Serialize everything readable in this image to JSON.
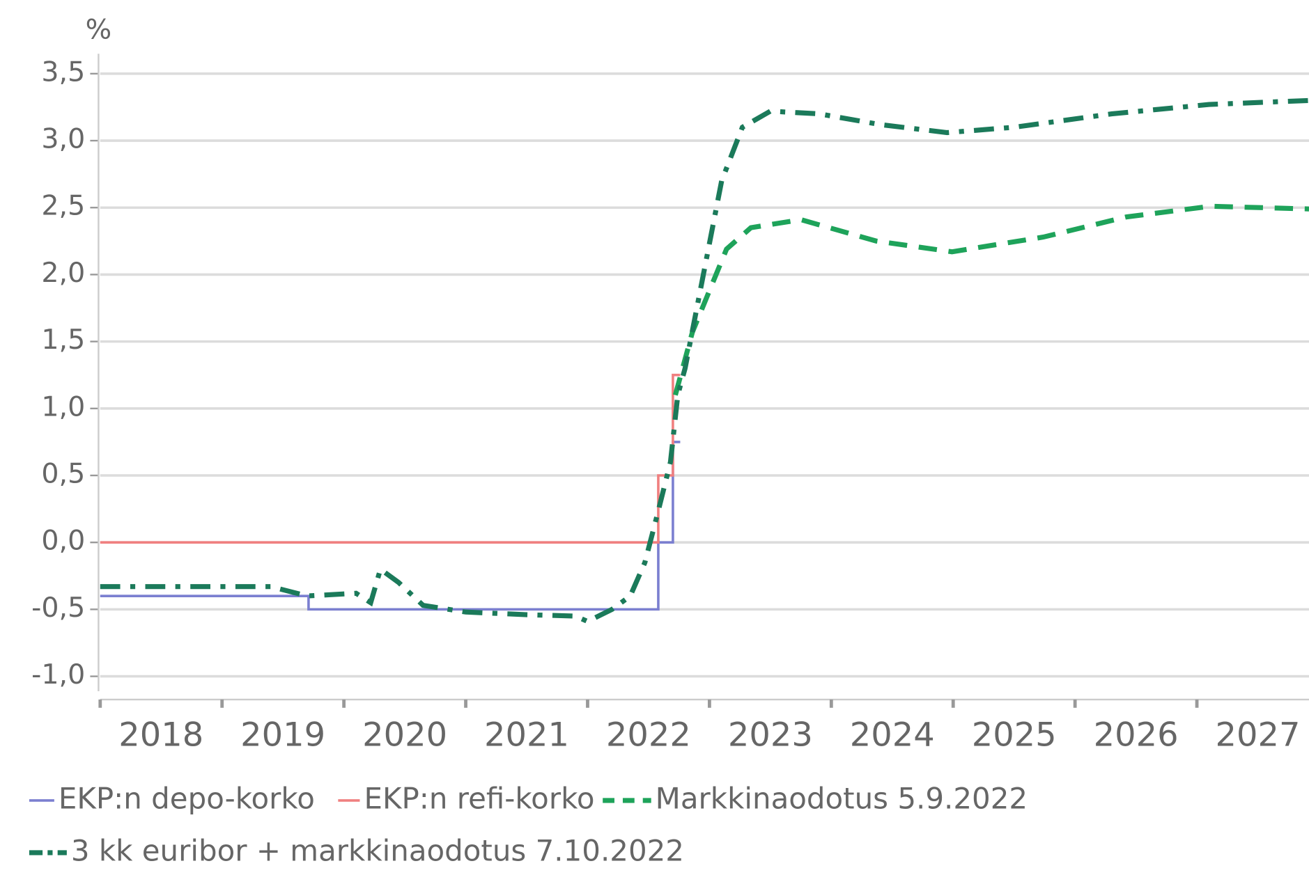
{
  "chart_data": {
    "type": "line",
    "y_label": "%",
    "xlim": [
      2018,
      2027.92
    ],
    "ylim": [
      -1.0,
      3.5
    ],
    "xticks": [
      {
        "value": 2018,
        "label": "2018"
      },
      {
        "value": 2019,
        "label": "2019"
      },
      {
        "value": 2020,
        "label": "2020"
      },
      {
        "value": 2021,
        "label": "2021"
      },
      {
        "value": 2022,
        "label": "2022"
      },
      {
        "value": 2023,
        "label": "2023"
      },
      {
        "value": 2024,
        "label": "2024"
      },
      {
        "value": 2025,
        "label": "2025"
      },
      {
        "value": 2026,
        "label": "2026"
      },
      {
        "value": 2027,
        "label": "2027"
      }
    ],
    "yticks": [
      {
        "value": 3.5,
        "label": "3,5"
      },
      {
        "value": 3.0,
        "label": "3,0"
      },
      {
        "value": 2.5,
        "label": "2,5"
      },
      {
        "value": 2.0,
        "label": "2,0"
      },
      {
        "value": 1.5,
        "label": "1,5"
      },
      {
        "value": 1.0,
        "label": "1,0"
      },
      {
        "value": 0.5,
        "label": "0,5"
      },
      {
        "value": 0.0,
        "label": "0,0"
      },
      {
        "value": -0.5,
        "label": "-0,5"
      },
      {
        "value": -1.0,
        "label": "-1,0"
      }
    ],
    "grid": true,
    "series": [
      {
        "name": "EKP:n depo-korko",
        "color": "#7b7fd0",
        "dash": "solid",
        "x": [
          2018,
          2019.71,
          2019.71,
          2022.58,
          2022.58,
          2022.7,
          2022.7,
          2022.76
        ],
        "values": [
          -0.4,
          -0.4,
          -0.5,
          -0.5,
          0.0,
          0.0,
          0.75,
          0.75
        ]
      },
      {
        "name": "EKP:n refi-korko",
        "color": "#f08080",
        "dash": "solid",
        "x": [
          2018,
          2022.58,
          2022.58,
          2022.7,
          2022.7,
          2022.76
        ],
        "values": [
          0.0,
          0.0,
          0.5,
          0.5,
          1.25,
          1.25
        ]
      },
      {
        "name": "Markkinaodotus 5.9.2022",
        "color": "#1ea35a",
        "dash": "dashed",
        "x": [
          2022.72,
          2022.86,
          2023.14,
          2023.34,
          2023.75,
          2024.37,
          2024.99,
          2025.74,
          2026.42,
          2027.11,
          2027.92
        ],
        "values": [
          1.1,
          1.57,
          2.19,
          2.35,
          2.41,
          2.25,
          2.17,
          2.28,
          2.43,
          2.51,
          2.49
        ]
      },
      {
        "name": "3 kk euribor + markkinaodotus 7.10.2022",
        "color": "#1b7a5a",
        "dash": "dashdot",
        "x": [
          2018,
          2019.4,
          2019.7,
          2020.1,
          2020.22,
          2020.3,
          2020.45,
          2020.65,
          2021.0,
          2021.5,
          2021.9,
          2022.0,
          2022.2,
          2022.35,
          2022.47,
          2022.57,
          2022.68,
          2022.74,
          2022.8,
          2022.95,
          2023.1,
          2023.27,
          2023.5,
          2023.9,
          2024.4,
          2024.95,
          2025.5,
          2026.3,
          2027.1,
          2027.92
        ],
        "values": [
          -0.33,
          -0.33,
          -0.4,
          -0.38,
          -0.45,
          -0.2,
          -0.3,
          -0.47,
          -0.52,
          -0.54,
          -0.55,
          -0.59,
          -0.5,
          -0.4,
          -0.15,
          0.2,
          0.6,
          1.1,
          1.3,
          2.0,
          2.7,
          3.1,
          3.22,
          3.2,
          3.12,
          3.06,
          3.1,
          3.2,
          3.27,
          3.3
        ]
      }
    ]
  }
}
